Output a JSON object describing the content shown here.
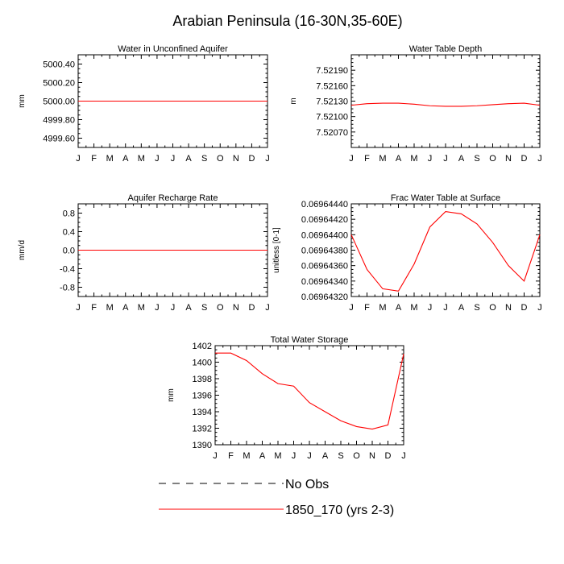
{
  "figure": {
    "title": "Arabian Peninsula (16-30N,35-60E)"
  },
  "chart_data": [
    {
      "type": "line",
      "title": "Water in Unconfined Aquifer",
      "xlabel": "",
      "ylabel": "mm",
      "categories": [
        "J",
        "F",
        "M",
        "A",
        "M",
        "J",
        "J",
        "A",
        "S",
        "O",
        "N",
        "D",
        "J"
      ],
      "ylim": [
        4999.5,
        5000.5
      ],
      "yticks": [
        4999.6,
        4999.8,
        5000.0,
        5000.2,
        5000.4
      ],
      "ytick_labels": [
        "4999.60",
        "4999.80",
        "5000.00",
        "5000.20",
        "5000.40"
      ],
      "series": [
        {
          "name": "1850_170 (yrs 2-3)",
          "color": "#ff0000",
          "values": [
            5000,
            5000,
            5000,
            5000,
            5000,
            5000,
            5000,
            5000,
            5000,
            5000,
            5000,
            5000,
            5000
          ]
        }
      ]
    },
    {
      "type": "line",
      "title": "Water Table Depth",
      "xlabel": "",
      "ylabel": "m",
      "categories": [
        "J",
        "F",
        "M",
        "A",
        "M",
        "J",
        "J",
        "A",
        "S",
        "O",
        "N",
        "D",
        "J"
      ],
      "ylim": [
        7.5204,
        7.5222
      ],
      "yticks": [
        7.5207,
        7.521,
        7.5213,
        7.5216,
        7.5219
      ],
      "ytick_labels": [
        "7.52070",
        "7.52100",
        "7.52130",
        "7.52160",
        "7.52190"
      ],
      "series": [
        {
          "name": "1850_170 (yrs 2-3)",
          "color": "#ff0000",
          "values": [
            7.52122,
            7.52125,
            7.52126,
            7.52126,
            7.52124,
            7.52121,
            7.5212,
            7.5212,
            7.52121,
            7.52123,
            7.52125,
            7.52126,
            7.52122
          ]
        }
      ]
    },
    {
      "type": "line",
      "title": "Aquifer Recharge Rate",
      "xlabel": "",
      "ylabel": "mm/d",
      "categories": [
        "J",
        "F",
        "M",
        "A",
        "M",
        "J",
        "J",
        "A",
        "S",
        "O",
        "N",
        "D",
        "J"
      ],
      "ylim": [
        -1.0,
        1.0
      ],
      "yticks": [
        -0.8,
        -0.4,
        0.0,
        0.4,
        0.8
      ],
      "ytick_labels": [
        "-0.8",
        "-0.4",
        "0.0",
        "0.4",
        "0.8"
      ],
      "series": [
        {
          "name": "1850_170 (yrs 2-3)",
          "color": "#ff0000",
          "values": [
            0,
            0,
            0,
            0,
            0,
            0,
            0,
            0,
            0,
            0,
            0,
            0,
            0
          ]
        }
      ]
    },
    {
      "type": "line",
      "title": "Frac Water Table at Surface",
      "xlabel": "",
      "ylabel": "unitless [0-1]",
      "categories": [
        "J",
        "F",
        "M",
        "A",
        "M",
        "J",
        "J",
        "A",
        "S",
        "O",
        "N",
        "D",
        "J"
      ],
      "ylim": [
        0.0696432,
        0.0696444
      ],
      "yticks": [
        0.0696432,
        0.0696434,
        0.0696436,
        0.0696438,
        0.069644,
        0.0696442,
        0.0696444
      ],
      "ytick_labels": [
        "0.06964320",
        "0.06964340",
        "0.06964360",
        "0.06964380",
        "0.06964400",
        "0.06964420",
        "0.06964440"
      ],
      "series": [
        {
          "name": "1850_170 (yrs 2-3)",
          "color": "#ff0000",
          "values": [
            0.069644,
            0.06964355,
            0.0696433,
            0.06964327,
            0.06964362,
            0.0696441,
            0.0696443,
            0.06964427,
            0.06964414,
            0.0696439,
            0.0696436,
            0.0696434,
            0.069644
          ]
        }
      ]
    },
    {
      "type": "line",
      "title": "Total Water Storage",
      "xlabel": "",
      "ylabel": "mm",
      "categories": [
        "J",
        "F",
        "M",
        "A",
        "M",
        "J",
        "J",
        "A",
        "S",
        "O",
        "N",
        "D",
        "J"
      ],
      "ylim": [
        1390,
        1402
      ],
      "yticks": [
        1390,
        1392,
        1394,
        1396,
        1398,
        1400,
        1402
      ],
      "ytick_labels": [
        "1390",
        "1392",
        "1394",
        "1396",
        "1398",
        "1400",
        "1402"
      ],
      "series": [
        {
          "name": "1850_170 (yrs 2-3)",
          "color": "#ff0000",
          "values": [
            1401.1,
            1401.1,
            1400.2,
            1398.6,
            1397.4,
            1397.1,
            1395.1,
            1394.0,
            1392.9,
            1392.2,
            1391.9,
            1392.4,
            1401.0
          ]
        }
      ]
    }
  ],
  "legend": {
    "placement": "bottom-center",
    "items": [
      {
        "label": "No Obs",
        "style": "dashed",
        "color": "#000000"
      },
      {
        "label": "1850_170 (yrs 2-3)",
        "style": "solid",
        "color": "#ff0000"
      }
    ]
  }
}
